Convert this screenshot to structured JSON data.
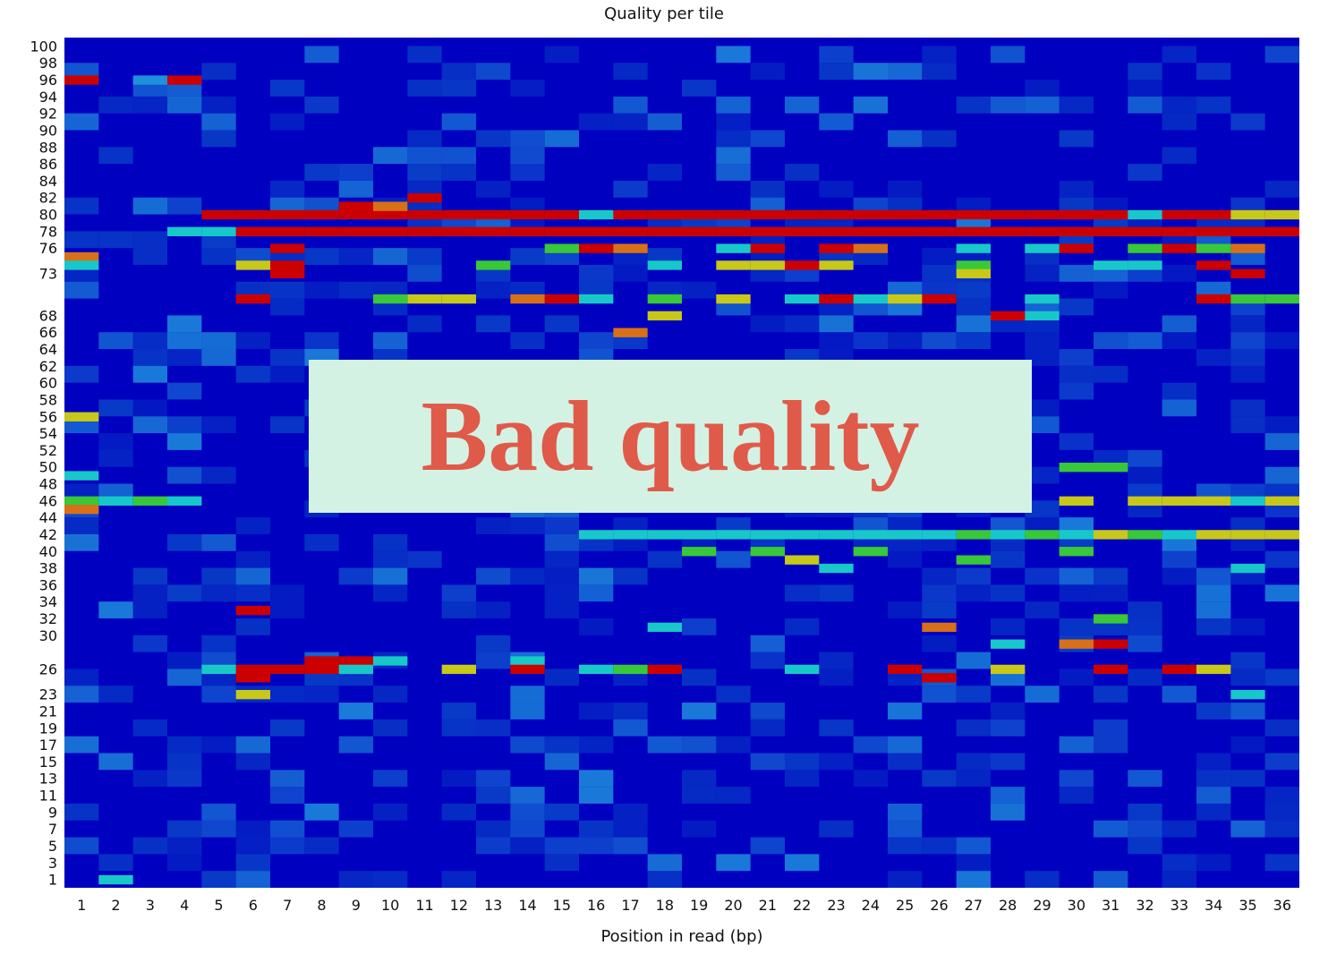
{
  "chart_data": {
    "type": "heatmap",
    "title": "Quality per tile",
    "xlabel": "Position in read (bp)",
    "ylabel": "",
    "x_ticks": [
      1,
      2,
      3,
      4,
      5,
      6,
      7,
      8,
      9,
      10,
      11,
      12,
      13,
      14,
      15,
      16,
      17,
      18,
      19,
      20,
      21,
      22,
      23,
      24,
      25,
      26,
      27,
      28,
      29,
      30,
      31,
      32,
      33,
      34,
      35,
      36
    ],
    "y_ticks": [
      100,
      98,
      96,
      94,
      92,
      90,
      88,
      86,
      84,
      82,
      80,
      78,
      76,
      73,
      68,
      66,
      64,
      62,
      60,
      58,
      56,
      54,
      52,
      50,
      48,
      46,
      44,
      42,
      40,
      38,
      36,
      34,
      32,
      30,
      26,
      23,
      21,
      19,
      17,
      15,
      13,
      11,
      9,
      7,
      5,
      3,
      1
    ],
    "colors": {
      "background": "#0000c0",
      "low": "#0a46c8",
      "mid": "#1e90dc",
      "cyan": "#18c8c8",
      "green": "#38c838",
      "yellow": "#c8c818",
      "orange": "#d87018",
      "red": "#cc0000"
    },
    "cells": [
      {
        "y": 96,
        "x": [
          1
        ],
        "level": "red"
      },
      {
        "y": 96,
        "x": [
          4
        ],
        "level": "red"
      },
      {
        "y": 96,
        "x": [
          3
        ],
        "level": "mid"
      },
      {
        "y": 80,
        "x": [
          5,
          6,
          7,
          8,
          9,
          10,
          11,
          12,
          13,
          14,
          15,
          16,
          17,
          18,
          19,
          20,
          21,
          22,
          23,
          24,
          25,
          26,
          27,
          28,
          29,
          30,
          31,
          32,
          33,
          34,
          35,
          36
        ],
        "level": "red"
      },
      {
        "y": 78,
        "x": [
          6,
          7,
          8,
          9,
          10,
          11,
          12,
          13,
          14,
          15,
          16,
          17,
          18,
          19,
          20,
          21,
          22,
          23,
          24,
          25,
          26,
          27,
          28,
          29,
          30,
          31,
          32,
          33,
          34,
          35,
          36
        ],
        "level": "red"
      },
      {
        "y": 78,
        "x": [
          4,
          5
        ],
        "level": "cyan"
      },
      {
        "y": 82,
        "x": [
          11
        ],
        "level": "red"
      },
      {
        "y": 81,
        "x": [
          9
        ],
        "level": "red"
      },
      {
        "y": 81,
        "x": [
          10
        ],
        "level": "orange"
      },
      {
        "y": 80,
        "x": [
          16,
          32
        ],
        "level": "cyan"
      },
      {
        "y": 80,
        "x": [
          35,
          36
        ],
        "level": "yellow"
      },
      {
        "y": 76,
        "x": [
          7,
          16,
          21,
          23,
          30,
          33
        ],
        "level": "red"
      },
      {
        "y": 76,
        "x": [
          17,
          24,
          35
        ],
        "level": "orange"
      },
      {
        "y": 76,
        "x": [
          15,
          32,
          34
        ],
        "level": "green"
      },
      {
        "y": 76,
        "x": [
          20,
          27,
          29
        ],
        "level": "cyan"
      },
      {
        "y": 75,
        "x": [
          1
        ],
        "level": "orange"
      },
      {
        "y": 74,
        "x": [
          1
        ],
        "level": "cyan"
      },
      {
        "y": 74,
        "x": [
          6,
          20,
          21,
          23
        ],
        "level": "yellow"
      },
      {
        "y": 74,
        "x": [
          7,
          22,
          34
        ],
        "level": "red"
      },
      {
        "y": 74,
        "x": [
          13,
          27
        ],
        "level": "green"
      },
      {
        "y": 74,
        "x": [
          18,
          31,
          32
        ],
        "level": "cyan"
      },
      {
        "y": 73,
        "x": [
          7,
          35
        ],
        "level": "red"
      },
      {
        "y": 73,
        "x": [
          27
        ],
        "level": "yellow"
      },
      {
        "y": 70,
        "x": [
          6,
          15,
          23,
          26,
          34
        ],
        "level": "red"
      },
      {
        "y": 70,
        "x": [
          11,
          12,
          20,
          25
        ],
        "level": "yellow"
      },
      {
        "y": 70,
        "x": [
          10,
          18,
          35,
          36
        ],
        "level": "green"
      },
      {
        "y": 70,
        "x": [
          14
        ],
        "level": "orange"
      },
      {
        "y": 70,
        "x": [
          16,
          22,
          24,
          29
        ],
        "level": "cyan"
      },
      {
        "y": 68,
        "x": [
          18
        ],
        "level": "yellow"
      },
      {
        "y": 68,
        "x": [
          28
        ],
        "level": "red"
      },
      {
        "y": 68,
        "x": [
          29
        ],
        "level": "cyan"
      },
      {
        "y": 66,
        "x": [
          17
        ],
        "level": "orange"
      },
      {
        "y": 56,
        "x": [
          1
        ],
        "level": "yellow"
      },
      {
        "y": 50,
        "x": [
          30,
          31
        ],
        "level": "green"
      },
      {
        "y": 49,
        "x": [
          1
        ],
        "level": "cyan"
      },
      {
        "y": 46,
        "x": [
          1,
          3
        ],
        "level": "green"
      },
      {
        "y": 46,
        "x": [
          30,
          32,
          33,
          34,
          36
        ],
        "level": "yellow"
      },
      {
        "y": 46,
        "x": [
          2,
          4,
          35
        ],
        "level": "cyan"
      },
      {
        "y": 45,
        "x": [
          1
        ],
        "level": "orange"
      },
      {
        "y": 42,
        "x": [
          27,
          29,
          32
        ],
        "level": "green"
      },
      {
        "y": 42,
        "x": [
          31,
          34,
          35,
          36
        ],
        "level": "yellow"
      },
      {
        "y": 42,
        "x": [
          16,
          17,
          18,
          19,
          20,
          21,
          22,
          23,
          24,
          25,
          26,
          28,
          30,
          33
        ],
        "level": "cyan"
      },
      {
        "y": 40,
        "x": [
          19,
          21,
          24,
          30
        ],
        "level": "green"
      },
      {
        "y": 39,
        "x": [
          22
        ],
        "level": "yellow"
      },
      {
        "y": 39,
        "x": [
          27
        ],
        "level": "green"
      },
      {
        "y": 38,
        "x": [
          23,
          35
        ],
        "level": "cyan"
      },
      {
        "y": 33,
        "x": [
          6
        ],
        "level": "red"
      },
      {
        "y": 32,
        "x": [
          31
        ],
        "level": "green"
      },
      {
        "y": 31,
        "x": [
          18
        ],
        "level": "cyan"
      },
      {
        "y": 31,
        "x": [
          26
        ],
        "level": "orange"
      },
      {
        "y": 29,
        "x": [
          28
        ],
        "level": "cyan"
      },
      {
        "y": 29,
        "x": [
          30
        ],
        "level": "orange"
      },
      {
        "y": 29,
        "x": [
          31
        ],
        "level": "red"
      },
      {
        "y": 27,
        "x": [
          8,
          9
        ],
        "level": "red"
      },
      {
        "y": 27,
        "x": [
          10,
          14
        ],
        "level": "cyan"
      },
      {
        "y": 26,
        "x": [
          6,
          7,
          8,
          14,
          18,
          25,
          31,
          33
        ],
        "level": "red"
      },
      {
        "y": 26,
        "x": [
          12,
          28,
          34
        ],
        "level": "yellow"
      },
      {
        "y": 26,
        "x": [
          17
        ],
        "level": "green"
      },
      {
        "y": 26,
        "x": [
          5,
          9,
          16,
          22
        ],
        "level": "cyan"
      },
      {
        "y": 25,
        "x": [
          6,
          26
        ],
        "level": "red"
      },
      {
        "y": 23,
        "x": [
          6
        ],
        "level": "yellow"
      },
      {
        "y": 23,
        "x": [
          35
        ],
        "level": "cyan"
      },
      {
        "y": 1,
        "x": [
          2
        ],
        "level": "cyan"
      }
    ]
  },
  "overlay": {
    "label": "Bad quality"
  }
}
